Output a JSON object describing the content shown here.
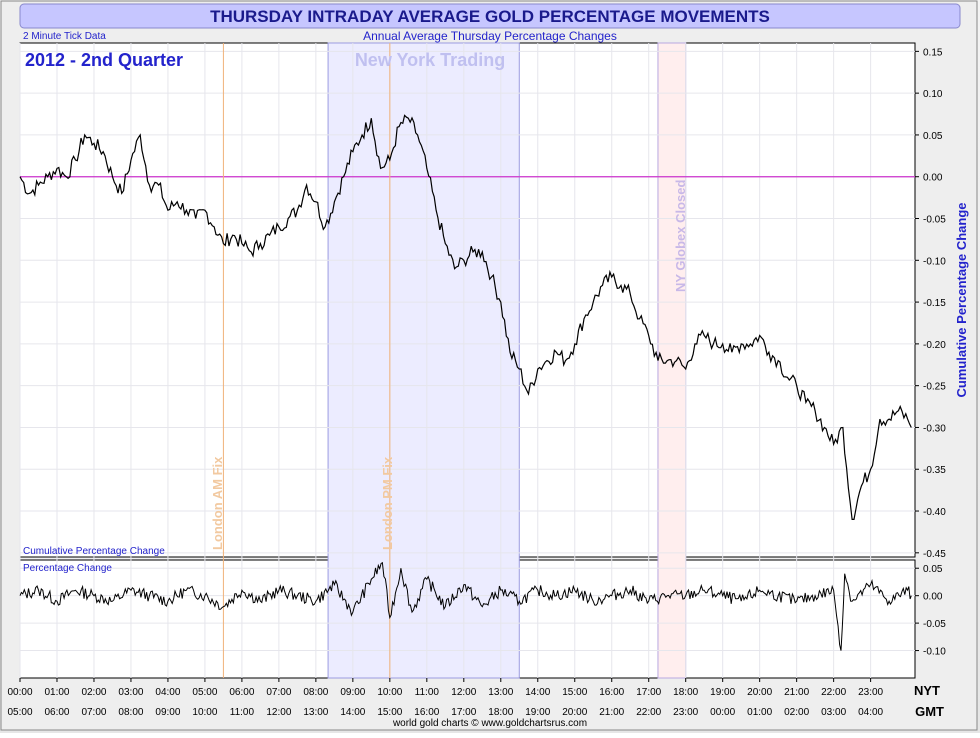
{
  "header": {
    "title": "THURSDAY INTRADAY AVERAGE GOLD PERCENTAGE MOVEMENTS",
    "subtitle": "Annual Average Thursday Percentage Changes",
    "tick_note": "2 Minute Tick Data",
    "period": "2012 - 2nd Quarter",
    "footer": "world gold charts © www.goldchartsrus.com"
  },
  "colors": {
    "title_bg": "#c6c6ff",
    "title_text": "#1a1a8c",
    "accent_blue": "#2323cc",
    "ny_band": "#ececff",
    "globex_band": "#ffeeee",
    "zero_line": "#cc33cc",
    "fix_line": "#f0b27a",
    "series": "#000000"
  },
  "annotations": {
    "ny_trading": "New York Trading",
    "london_am": "London AM Fix",
    "london_pm": "London PM Fix",
    "globex": "NY Globex Closed",
    "lower_left_upper": "Cumulative Percentage Change",
    "lower_panel_label": "Percentage Change",
    "y_axis_label": "Cumulative Percentage Change"
  },
  "axis": {
    "nyt_label": "NYT",
    "gmt_label": "GMT",
    "nyt_ticks": [
      "00:00",
      "01:00",
      "02:00",
      "03:00",
      "04:00",
      "05:00",
      "06:00",
      "07:00",
      "08:00",
      "09:00",
      "10:00",
      "11:00",
      "12:00",
      "13:00",
      "14:00",
      "15:00",
      "16:00",
      "17:00",
      "18:00",
      "19:00",
      "20:00",
      "21:00",
      "22:00",
      "23:00"
    ],
    "gmt_ticks": [
      "05:00",
      "06:00",
      "07:00",
      "08:00",
      "09:00",
      "10:00",
      "11:00",
      "12:00",
      "13:00",
      "14:00",
      "15:00",
      "16:00",
      "17:00",
      "18:00",
      "19:00",
      "20:00",
      "21:00",
      "22:00",
      "23:00",
      "00:00",
      "01:00",
      "02:00",
      "03:00",
      "04:00"
    ],
    "upper_ticks": [
      "0.15",
      "0.10",
      "0.05",
      "0.00",
      "-0.05",
      "-0.10",
      "-0.15",
      "-0.20",
      "-0.25",
      "-0.30",
      "-0.35",
      "-0.40",
      "-0.45"
    ],
    "lower_ticks": [
      "0.05",
      "0.00",
      "-0.05",
      "-0.10"
    ]
  },
  "chart_data": [
    {
      "type": "line",
      "title": "Cumulative Percentage Change",
      "xlabel": "NYT hours",
      "ylabel": "Cumulative Percentage Change",
      "xlim": [
        0,
        24.2
      ],
      "ylim": [
        -0.455,
        0.16
      ],
      "events": {
        "london_am_fix": 5.5,
        "london_pm_fix": 10.0,
        "ny_trading": [
          8.33,
          13.5
        ],
        "ny_globex_closed": [
          17.25,
          18.0
        ]
      },
      "series": [
        {
          "name": "Cumulative Percentage Change",
          "x": [
            0,
            0.25,
            0.5,
            0.75,
            1.0,
            1.25,
            1.5,
            1.75,
            2.0,
            2.25,
            2.5,
            2.75,
            3.0,
            3.25,
            3.5,
            3.75,
            4.0,
            4.25,
            4.5,
            4.75,
            5.0,
            5.25,
            5.5,
            5.75,
            6.0,
            6.25,
            6.5,
            6.75,
            7.0,
            7.25,
            7.5,
            7.75,
            8.0,
            8.25,
            8.5,
            8.75,
            9.0,
            9.25,
            9.5,
            9.75,
            10.0,
            10.25,
            10.5,
            10.75,
            11.0,
            11.25,
            11.5,
            11.75,
            12.0,
            12.25,
            12.5,
            12.75,
            13.0,
            13.25,
            13.5,
            13.75,
            14.0,
            14.25,
            14.5,
            14.75,
            15.0,
            15.25,
            15.5,
            15.75,
            16.0,
            16.25,
            16.5,
            16.75,
            17.0,
            17.25,
            17.5,
            17.75,
            18.0,
            18.25,
            18.5,
            18.75,
            19.0,
            19.25,
            19.5,
            19.75,
            20.0,
            20.25,
            20.5,
            20.75,
            21.0,
            21.25,
            21.5,
            21.75,
            22.0,
            22.25,
            22.5,
            22.75,
            23.0,
            23.25,
            23.5,
            23.75,
            24.0,
            24.1
          ],
          "values": [
            0.0,
            -0.02,
            -0.01,
            0.0,
            0.01,
            0.0,
            0.02,
            0.05,
            0.04,
            0.03,
            0.0,
            -0.02,
            0.02,
            0.05,
            -0.01,
            -0.01,
            -0.04,
            -0.03,
            -0.04,
            -0.05,
            -0.04,
            -0.06,
            -0.08,
            -0.07,
            -0.08,
            -0.09,
            -0.08,
            -0.07,
            -0.06,
            -0.05,
            -0.04,
            -0.01,
            -0.03,
            -0.06,
            -0.03,
            0.0,
            0.03,
            0.05,
            0.07,
            0.01,
            0.02,
            0.06,
            0.07,
            0.05,
            0.01,
            -0.04,
            -0.08,
            -0.11,
            -0.1,
            -0.09,
            -0.09,
            -0.12,
            -0.15,
            -0.21,
            -0.23,
            -0.26,
            -0.23,
            -0.22,
            -0.21,
            -0.22,
            -0.2,
            -0.17,
            -0.15,
            -0.13,
            -0.12,
            -0.13,
            -0.14,
            -0.17,
            -0.19,
            -0.22,
            -0.22,
            -0.22,
            -0.23,
            -0.2,
            -0.19,
            -0.2,
            -0.2,
            -0.21,
            -0.2,
            -0.2,
            -0.19,
            -0.21,
            -0.22,
            -0.24,
            -0.25,
            -0.27,
            -0.28,
            -0.3,
            -0.32,
            -0.3,
            -0.41,
            -0.37,
            -0.35,
            -0.29,
            -0.29,
            -0.28,
            -0.29,
            -0.3
          ]
        }
      ]
    },
    {
      "type": "line",
      "title": "Percentage Change",
      "xlabel": "NYT hours",
      "ylabel": "Percentage Change",
      "xlim": [
        0,
        24.2
      ],
      "ylim": [
        -0.15,
        0.065
      ],
      "series": [
        {
          "name": "Percentage Change",
          "x": [
            0,
            0.5,
            1.0,
            1.5,
            2.0,
            2.5,
            3.0,
            3.5,
            4.0,
            4.5,
            5.0,
            5.5,
            6.0,
            6.5,
            7.0,
            7.5,
            8.0,
            8.5,
            9.0,
            9.5,
            9.8,
            10.0,
            10.3,
            10.6,
            11.0,
            11.5,
            12.0,
            12.5,
            13.0,
            13.5,
            14.0,
            14.5,
            15.0,
            15.5,
            16.0,
            16.5,
            17.0,
            17.5,
            18.0,
            18.5,
            19.0,
            19.5,
            20.0,
            20.5,
            21.0,
            21.5,
            22.0,
            22.2,
            22.3,
            22.5,
            23.0,
            23.5,
            24.0,
            24.1
          ],
          "values": [
            0.0,
            0.01,
            -0.01,
            0.01,
            0.0,
            -0.01,
            0.01,
            0.0,
            -0.01,
            0.01,
            0.0,
            -0.02,
            0.01,
            -0.01,
            0.01,
            0.0,
            -0.01,
            0.02,
            -0.03,
            0.03,
            0.06,
            -0.04,
            0.05,
            -0.03,
            0.03,
            -0.02,
            0.02,
            -0.02,
            0.01,
            -0.01,
            0.01,
            0.0,
            0.01,
            -0.01,
            0.0,
            0.01,
            -0.01,
            0.0,
            0.0,
            0.01,
            0.0,
            -0.01,
            0.01,
            0.0,
            -0.01,
            0.0,
            0.01,
            -0.1,
            0.04,
            -0.01,
            0.02,
            -0.01,
            0.01,
            0.0
          ]
        }
      ]
    }
  ]
}
